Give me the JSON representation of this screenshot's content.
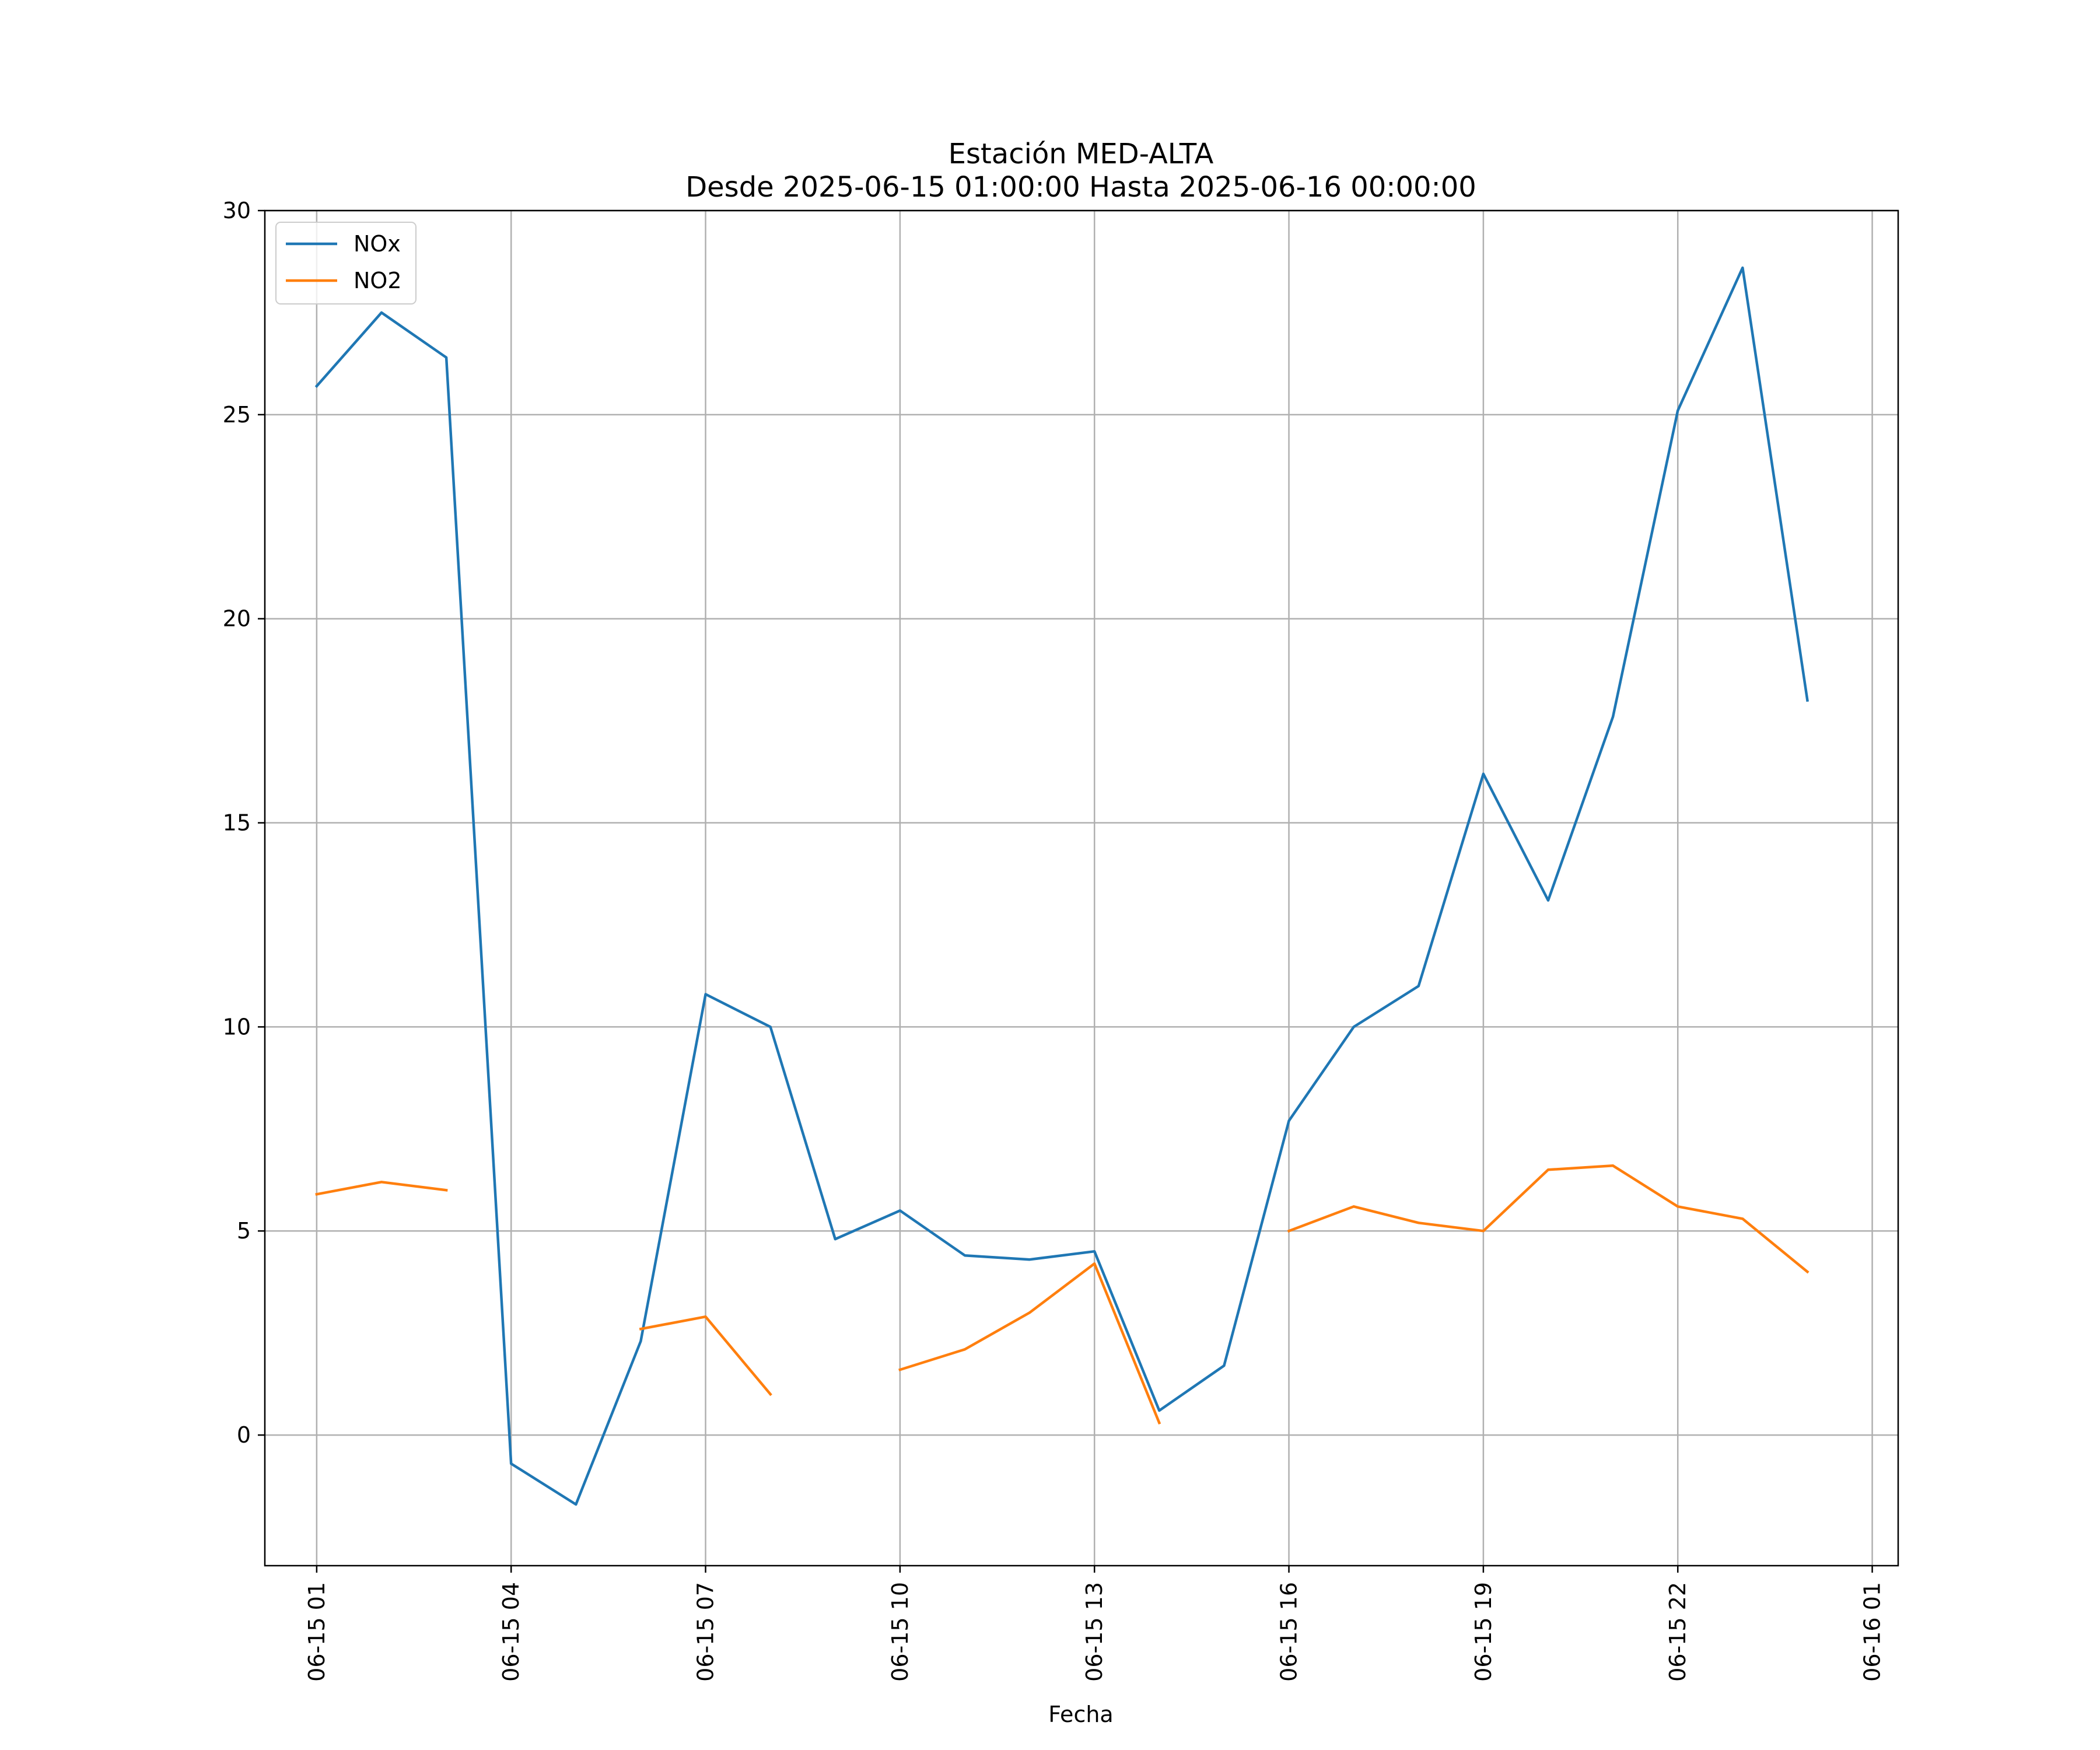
{
  "chart_data": {
    "type": "line",
    "title_line1": "Estación MED-ALTA",
    "title_line2": "Desde 2025-06-15 01:00:00 Hasta 2025-06-16 00:00:00",
    "xlabel": "Fecha",
    "ylabel": "",
    "ylim": [
      -3.2,
      30
    ],
    "xlim_hours": [
      -0.8,
      24.4
    ],
    "yticks": [
      0,
      5,
      10,
      15,
      20,
      25,
      30
    ],
    "xticks": [
      {
        "hour": 0,
        "label": "06-15 01"
      },
      {
        "hour": 3,
        "label": "06-15 04"
      },
      {
        "hour": 6,
        "label": "06-15 07"
      },
      {
        "hour": 9,
        "label": "06-15 10"
      },
      {
        "hour": 12,
        "label": "06-15 13"
      },
      {
        "hour": 15,
        "label": "06-15 16"
      },
      {
        "hour": 18,
        "label": "06-15 19"
      },
      {
        "hour": 21,
        "label": "06-15 22"
      },
      {
        "hour": 24,
        "label": "06-16 01"
      }
    ],
    "grid": true,
    "legend_position": "top-left",
    "series": [
      {
        "name": "NOx",
        "color": "#1f77b4",
        "values": [
          25.7,
          27.5,
          26.4,
          -0.7,
          -1.7,
          2.3,
          10.8,
          10.0,
          4.8,
          5.5,
          4.4,
          4.3,
          4.5,
          0.6,
          1.7,
          7.7,
          10.0,
          11.0,
          16.2,
          13.1,
          17.6,
          25.1,
          28.6,
          18.0
        ]
      },
      {
        "name": "NO2",
        "color": "#ff7f0e",
        "values": [
          5.9,
          6.2,
          6.0,
          null,
          null,
          2.6,
          2.9,
          1.0,
          null,
          1.6,
          2.1,
          3.0,
          4.2,
          0.3,
          null,
          5.0,
          5.6,
          5.2,
          5.0,
          6.5,
          6.6,
          5.6,
          5.3,
          4.0
        ]
      }
    ]
  }
}
